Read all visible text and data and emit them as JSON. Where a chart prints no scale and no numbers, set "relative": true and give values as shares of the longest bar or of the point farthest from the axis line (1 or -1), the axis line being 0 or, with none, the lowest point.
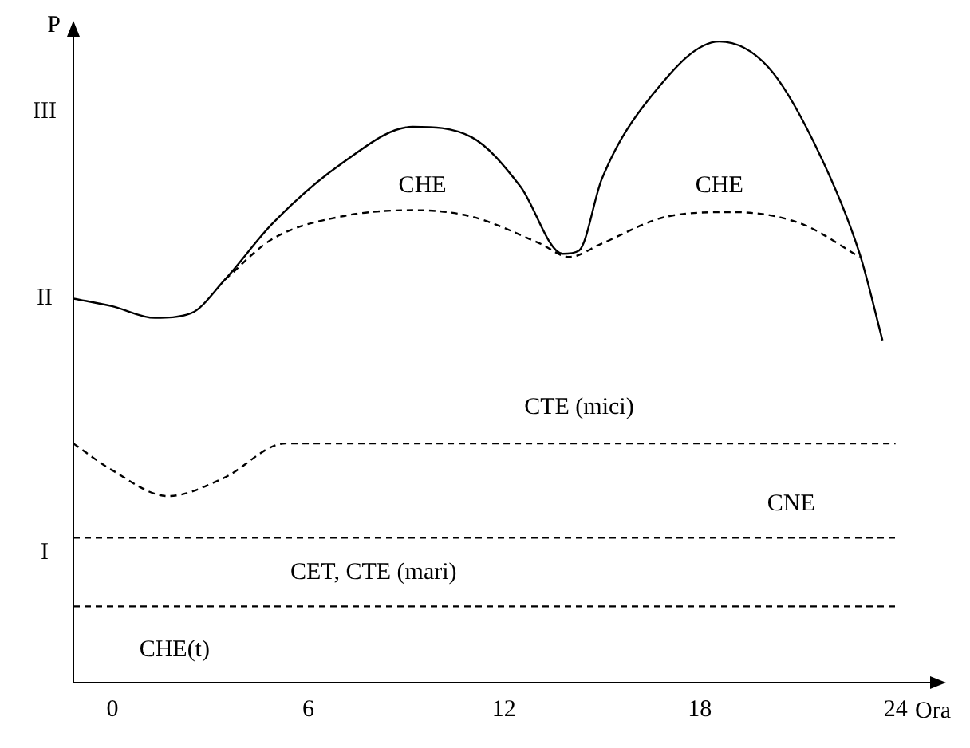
{
  "chart_data": {
    "type": "line",
    "relative": true,
    "xlabel": "Ora",
    "ylabel": "P",
    "xlim": [
      -1.2,
      25.5
    ],
    "xticks": [
      0,
      6,
      12,
      18,
      24
    ],
    "grid": false,
    "legend": false,
    "marker": "none",
    "series": [
      {
        "color": "#000000",
        "line_style": "solid",
        "x": [
          -1.2,
          0,
          1.3,
          2.4,
          3.45,
          4.9,
          7,
          9.2,
          11,
          12.5,
          13.8,
          14.3,
          15,
          16.5,
          18.6,
          20.1,
          21.6,
          22.9,
          23.6
        ],
        "values": [
          0.599,
          0.587,
          0.569,
          0.576,
          0.629,
          0.716,
          0.809,
          0.867,
          0.851,
          0.774,
          0.669,
          0.674,
          0.786,
          0.914,
          1,
          0.96,
          0.832,
          0.669,
          0.534
        ]
      },
      {
        "color": "#000000",
        "line_style": "dashed",
        "x": [
          3.45,
          4.9,
          7,
          9.2,
          11,
          13.1,
          14,
          15,
          17,
          19,
          21.1,
          22.9
        ],
        "values": [
          0.629,
          0.692,
          0.727,
          0.737,
          0.727,
          0.685,
          0.664,
          0.685,
          0.727,
          0.734,
          0.716,
          0.664
        ]
      },
      {
        "color": "#000000",
        "line_style": "dashed",
        "x": [
          -1.2,
          0,
          1.7,
          3.4,
          5.3,
          24
        ],
        "values": [
          0.373,
          0.331,
          0.291,
          0.319,
          0.373,
          0.373
        ]
      },
      {
        "color": "#000000",
        "line_style": "dashed",
        "x": [
          -1.2,
          24
        ],
        "values": [
          0.226,
          0.226
        ]
      },
      {
        "color": "#000000",
        "line_style": "dashed",
        "x": [
          -1.2,
          24
        ],
        "values": [
          0.119,
          0.119
        ]
      }
    ],
    "annotations": [
      "III",
      "II",
      "I",
      "CHE",
      "CHE",
      "CTE (mici)",
      "CNE",
      "CET, CTE (mari)",
      "CHE(t)"
    ]
  }
}
